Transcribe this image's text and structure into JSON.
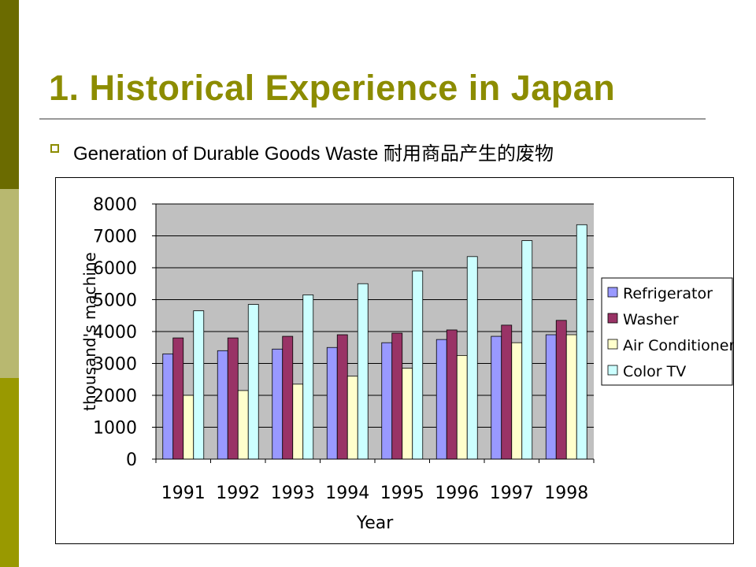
{
  "slide": {
    "title": "1. Historical Experience in Japan",
    "bullet": "Generation of Durable Goods Waste 耐用商品产生的废物",
    "bullet_icon": "hollow-square-bullet",
    "accent_color": "#8c8c00"
  },
  "chart_data": {
    "type": "bar",
    "title": "",
    "xlabel": "Year",
    "ylabel": "thousand's machine",
    "ylim": [
      0,
      8000
    ],
    "yticks": [
      "0",
      "1000",
      "2000",
      "3000",
      "4000",
      "5000",
      "6000",
      "7000",
      "8000"
    ],
    "grid": true,
    "legend_position": "right",
    "categories": [
      "1991",
      "1992",
      "1993",
      "1994",
      "1995",
      "1996",
      "1997",
      "1998"
    ],
    "series": [
      {
        "name": "Refrigerator",
        "color": "#9999ff",
        "values": [
          3300,
          3400,
          3450,
          3500,
          3650,
          3750,
          3850,
          3900
        ]
      },
      {
        "name": "Washer",
        "color": "#993366",
        "values": [
          3800,
          3800,
          3850,
          3900,
          3950,
          4050,
          4200,
          4350
        ]
      },
      {
        "name": "Air Conditioner",
        "color": "#ffffcc",
        "values": [
          2000,
          2150,
          2350,
          2600,
          2850,
          3250,
          3650,
          3900
        ]
      },
      {
        "name": "Color TV",
        "color": "#ccffff",
        "values": [
          4650,
          4850,
          5150,
          5500,
          5900,
          6350,
          6850,
          7350
        ]
      }
    ]
  }
}
